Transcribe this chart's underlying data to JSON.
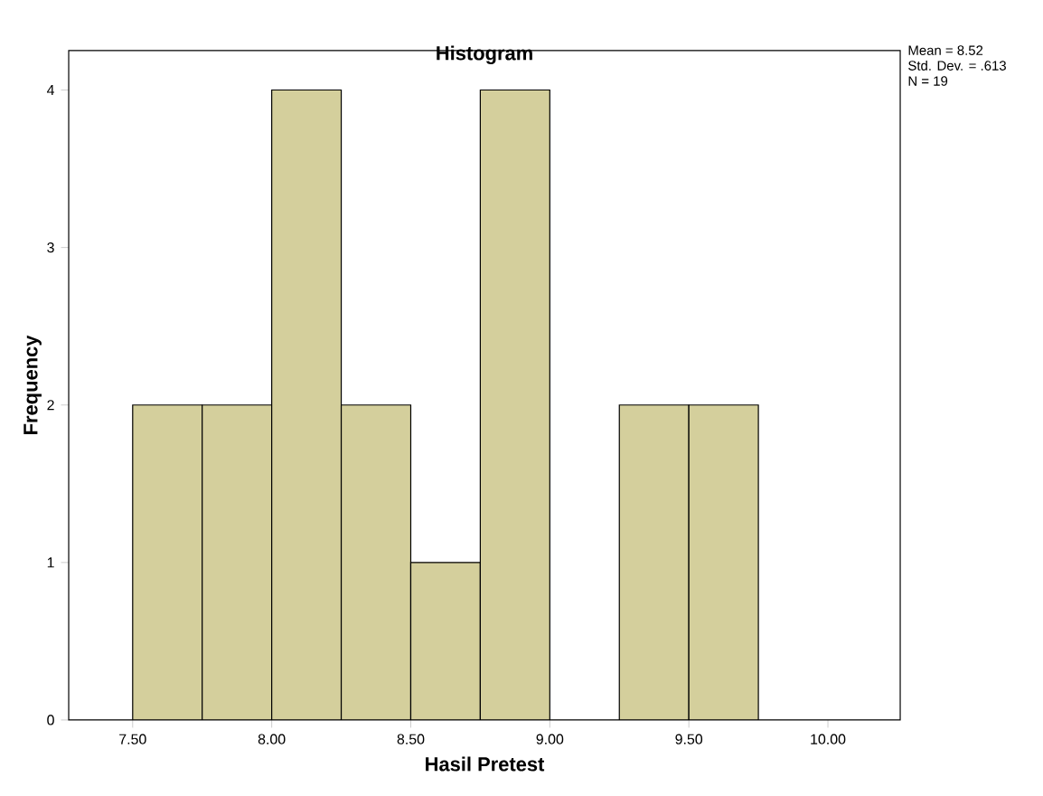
{
  "chart_data": {
    "type": "histogram",
    "title": "Histogram",
    "xlabel": "Hasil Pretest",
    "ylabel": "Frequency",
    "bins": [
      7.5,
      7.75,
      8.0,
      8.25,
      8.5,
      8.75,
      9.0,
      9.25,
      9.5,
      9.75
    ],
    "values": [
      2,
      2,
      4,
      2,
      1,
      4,
      0,
      2,
      2
    ],
    "color": "#d4cf9c",
    "xlim": [
      7.27,
      10.26
    ],
    "ylim": [
      0,
      4.25
    ],
    "xticks": [
      {
        "value": 7.5,
        "label": "7.50"
      },
      {
        "value": 8.0,
        "label": "8.00"
      },
      {
        "value": 8.5,
        "label": "8.50"
      },
      {
        "value": 9.0,
        "label": "9.00"
      },
      {
        "value": 9.5,
        "label": "9.50"
      },
      {
        "value": 10.0,
        "label": "10.00"
      }
    ],
    "yticks": [
      0,
      1,
      2,
      3,
      4
    ],
    "annotations": [
      "Mean = 8.52",
      "Std. Dev. = .613",
      "N = 19"
    ]
  }
}
